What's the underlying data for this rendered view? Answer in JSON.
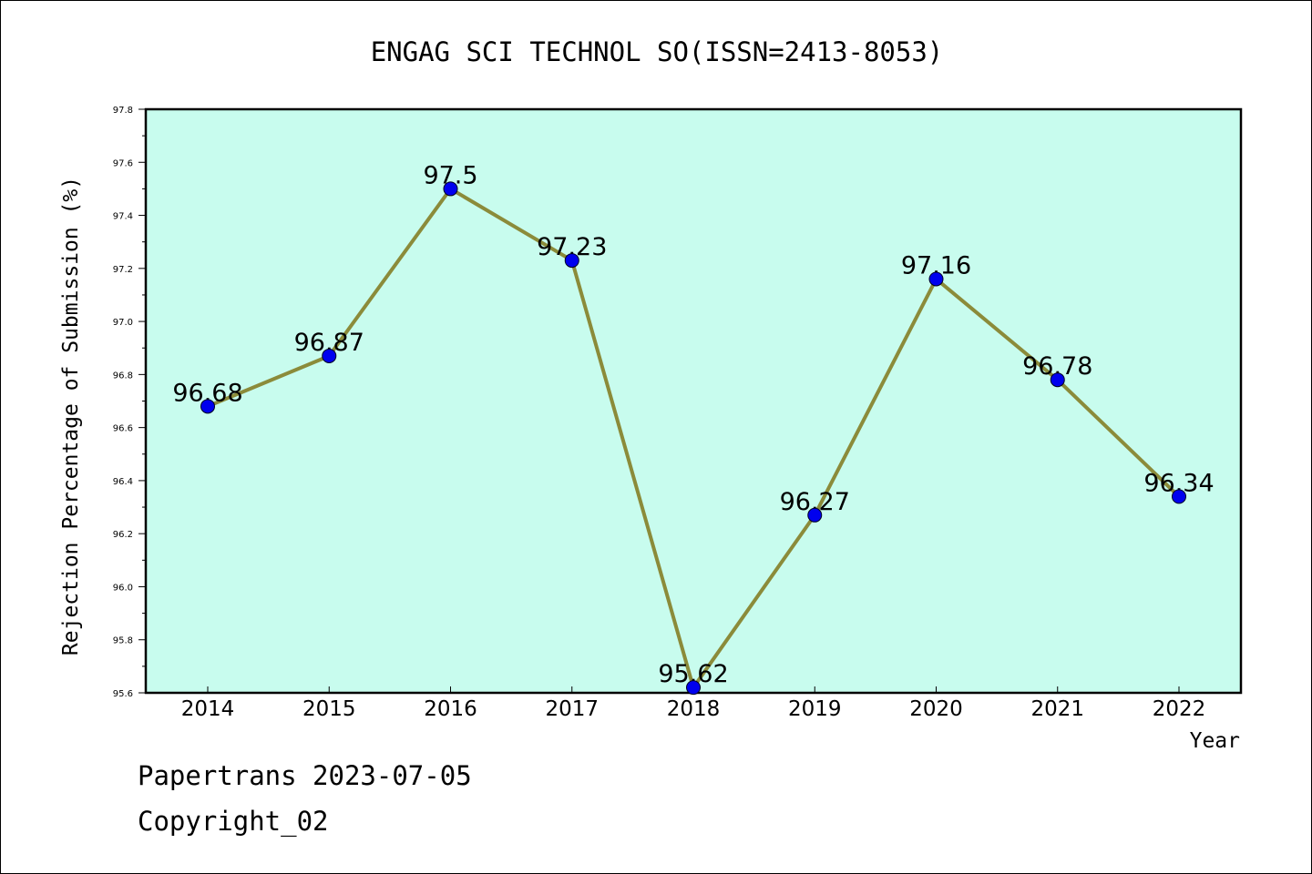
{
  "chart_data": {
    "type": "line",
    "title": "ENGAG SCI TECHNOL SO(ISSN=2413-8053)",
    "xlabel": "Year",
    "ylabel": "Rejection Percentage of Submission (%)",
    "categories": [
      "2014",
      "2015",
      "2016",
      "2017",
      "2018",
      "2019",
      "2020",
      "2021",
      "2022"
    ],
    "series": [
      {
        "values": [
          96.68,
          96.87,
          97.5,
          97.23,
          95.62,
          96.27,
          97.16,
          96.78,
          96.34
        ],
        "labels": [
          "96.68",
          "96.87",
          "97.5",
          "97.23",
          "95.62",
          "96.27",
          "97.16",
          "96.78",
          "96.34"
        ]
      }
    ],
    "ylim": [
      95.6,
      97.8
    ],
    "yticks": [
      "95.6",
      "95.8",
      "96.0",
      "96.2",
      "96.4",
      "96.6",
      "96.8",
      "97.0",
      "97.2",
      "97.4",
      "97.6",
      "97.8"
    ],
    "grid": false,
    "colors": {
      "plot_background": "#c8fcee",
      "line": "#8b8b3a",
      "marker": "#0000ee"
    }
  },
  "footer": {
    "line1": "Papertrans 2023-07-05",
    "line2": "Copyright_02"
  }
}
